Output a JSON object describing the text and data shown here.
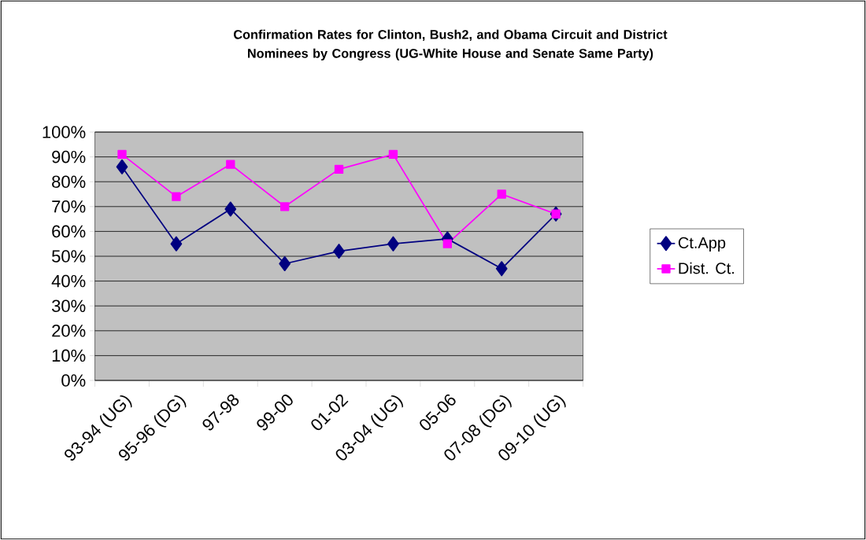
{
  "chart_data": {
    "type": "line",
    "title": "Confirmation Rates for Clinton, Bush2, and Obama Circuit and District Nominees by Congress (UG-White House and Senate Same Party)",
    "categories": [
      "93-94 (UG)",
      "95-96 (DG)",
      "97-98",
      "99-00",
      "01-02",
      "03-04 (UG)",
      "05-06",
      "07-08 (DG)",
      "09-10 (UG)"
    ],
    "series": [
      {
        "name": "Ct.App",
        "color": "#000080",
        "marker": "diamond",
        "values": [
          86,
          55,
          69,
          47,
          52,
          55,
          57,
          45,
          67
        ]
      },
      {
        "name": "Dist. Ct.",
        "color": "#ff00ff",
        "marker": "square",
        "values": [
          91,
          74,
          87,
          70,
          85,
          91,
          55,
          75,
          67
        ]
      }
    ],
    "ylim": [
      0,
      100
    ],
    "yticks": [
      {
        "value": 0,
        "label": "0%"
      },
      {
        "value": 10,
        "label": "10%"
      },
      {
        "value": 20,
        "label": "20%"
      },
      {
        "value": 30,
        "label": "30%"
      },
      {
        "value": 40,
        "label": "40%"
      },
      {
        "value": 50,
        "label": "50%"
      },
      {
        "value": 60,
        "label": "60%"
      },
      {
        "value": 70,
        "label": "70%"
      },
      {
        "value": 80,
        "label": "80%"
      },
      {
        "value": 90,
        "label": "90%"
      },
      {
        "value": 100,
        "label": "100%"
      }
    ],
    "grid": "y",
    "legend": "right",
    "line_style": "solid"
  }
}
